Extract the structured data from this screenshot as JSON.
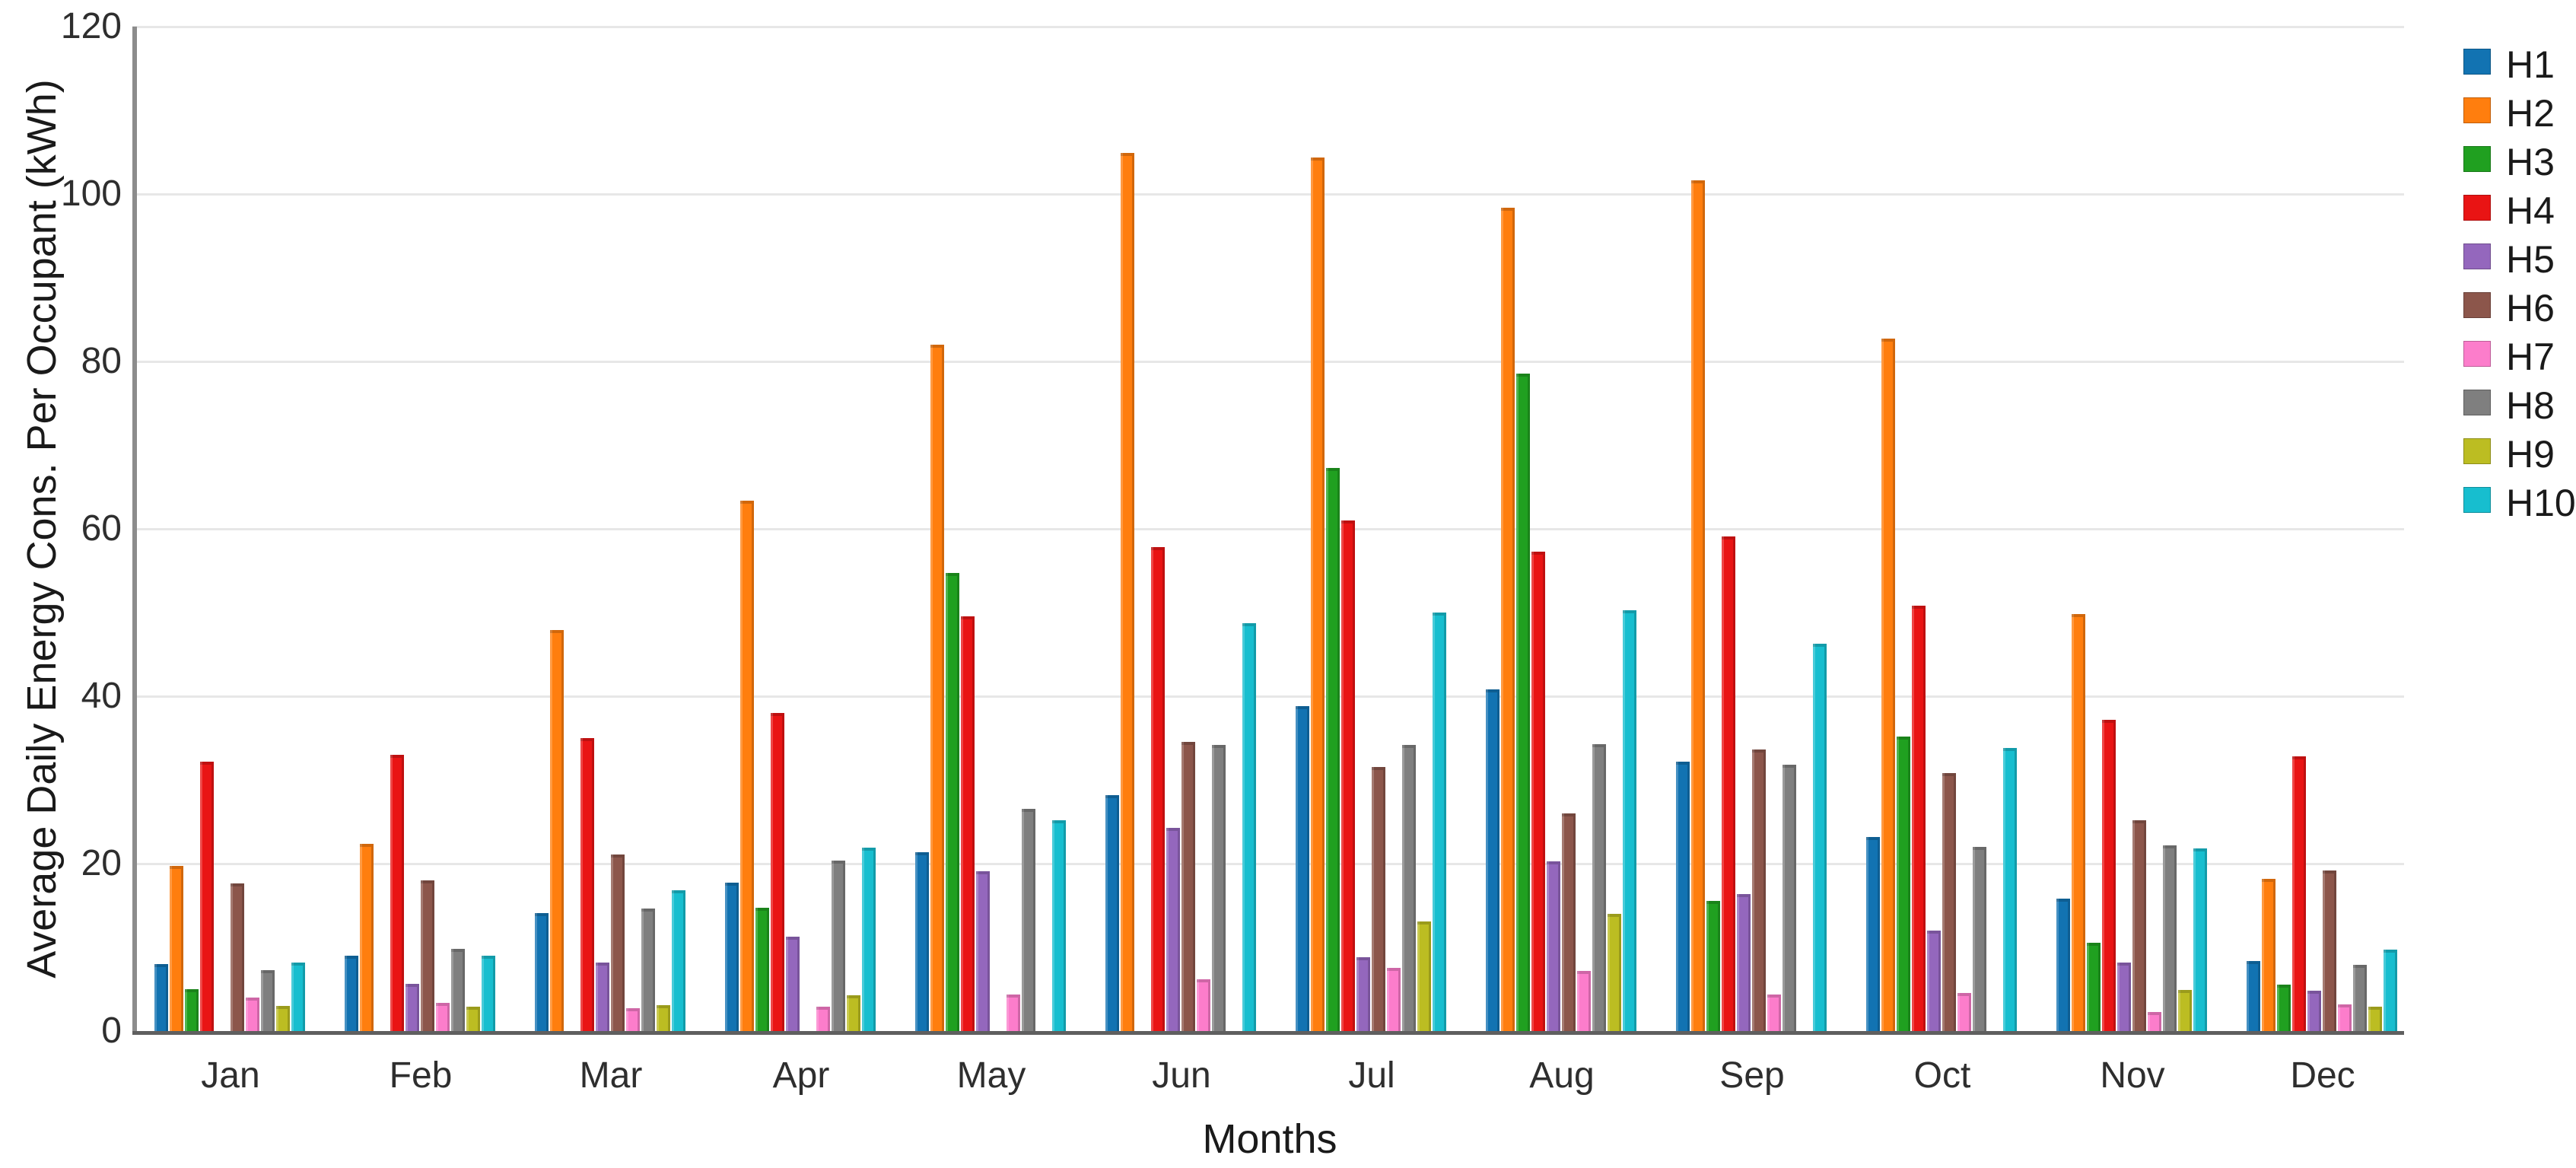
{
  "chart_data": {
    "type": "bar",
    "title": "",
    "xlabel": "Months",
    "ylabel": "Average Daily Energy Cons. Per Occupant (kWh)",
    "categories": [
      "Jan",
      "Feb",
      "Mar",
      "Apr",
      "May",
      "Jun",
      "Jul",
      "Aug",
      "Sep",
      "Oct",
      "Nov",
      "Dec"
    ],
    "series": [
      {
        "name": "H1",
        "color": "#1273b2",
        "values": [
          8.0,
          9.0,
          14.1,
          17.7,
          21.4,
          28.2,
          38.8,
          40.8,
          32.2,
          23.2,
          15.8,
          8.4
        ]
      },
      {
        "name": "H2",
        "color": "#ff7e0e",
        "values": [
          19.7,
          22.4,
          47.9,
          63.4,
          82.0,
          104.9,
          104.4,
          98.4,
          101.6,
          82.7,
          49.8,
          18.2
        ]
      },
      {
        "name": "H3",
        "color": "#20a020",
        "values": [
          5.0,
          0,
          0,
          14.7,
          54.7,
          0,
          67.3,
          78.5,
          15.5,
          35.2,
          10.5,
          5.5
        ]
      },
      {
        "name": "H4",
        "color": "#e91414",
        "values": [
          32.2,
          33.0,
          35.0,
          38.0,
          49.5,
          57.8,
          61.0,
          57.3,
          59.1,
          50.8,
          37.2,
          32.8
        ]
      },
      {
        "name": "H5",
        "color": "#9467bd",
        "values": [
          0,
          5.6,
          8.2,
          11.3,
          19.1,
          24.3,
          8.8,
          20.3,
          16.4,
          12.0,
          8.2,
          4.8
        ]
      },
      {
        "name": "H6",
        "color": "#8c564b",
        "values": [
          17.6,
          18.0,
          21.1,
          0,
          0,
          34.5,
          31.5,
          26.0,
          33.6,
          30.8,
          25.2,
          19.2
        ]
      },
      {
        "name": "H7",
        "color": "#fc7dcb",
        "values": [
          4.0,
          3.4,
          2.7,
          2.9,
          4.4,
          6.2,
          7.5,
          7.2,
          4.4,
          4.5,
          2.3,
          3.2
        ]
      },
      {
        "name": "H8",
        "color": "#7f7f7f",
        "values": [
          7.3,
          9.8,
          14.6,
          20.4,
          26.5,
          34.2,
          34.2,
          34.3,
          31.8,
          22.0,
          22.2,
          7.9
        ]
      },
      {
        "name": "H9",
        "color": "#bcbd22",
        "values": [
          3.0,
          2.9,
          3.1,
          4.3,
          0,
          0,
          13.1,
          14.0,
          0,
          0,
          4.9,
          2.9
        ]
      },
      {
        "name": "H10",
        "color": "#17becf",
        "values": [
          8.2,
          9.0,
          16.8,
          21.9,
          25.2,
          48.7,
          50.0,
          50.3,
          46.3,
          33.8,
          21.8,
          9.7
        ]
      }
    ],
    "ylim": [
      0,
      120
    ],
    "yticks": [
      0,
      20,
      40,
      60,
      80,
      100,
      120
    ],
    "grid": "horizontal",
    "legend_position": "right"
  }
}
